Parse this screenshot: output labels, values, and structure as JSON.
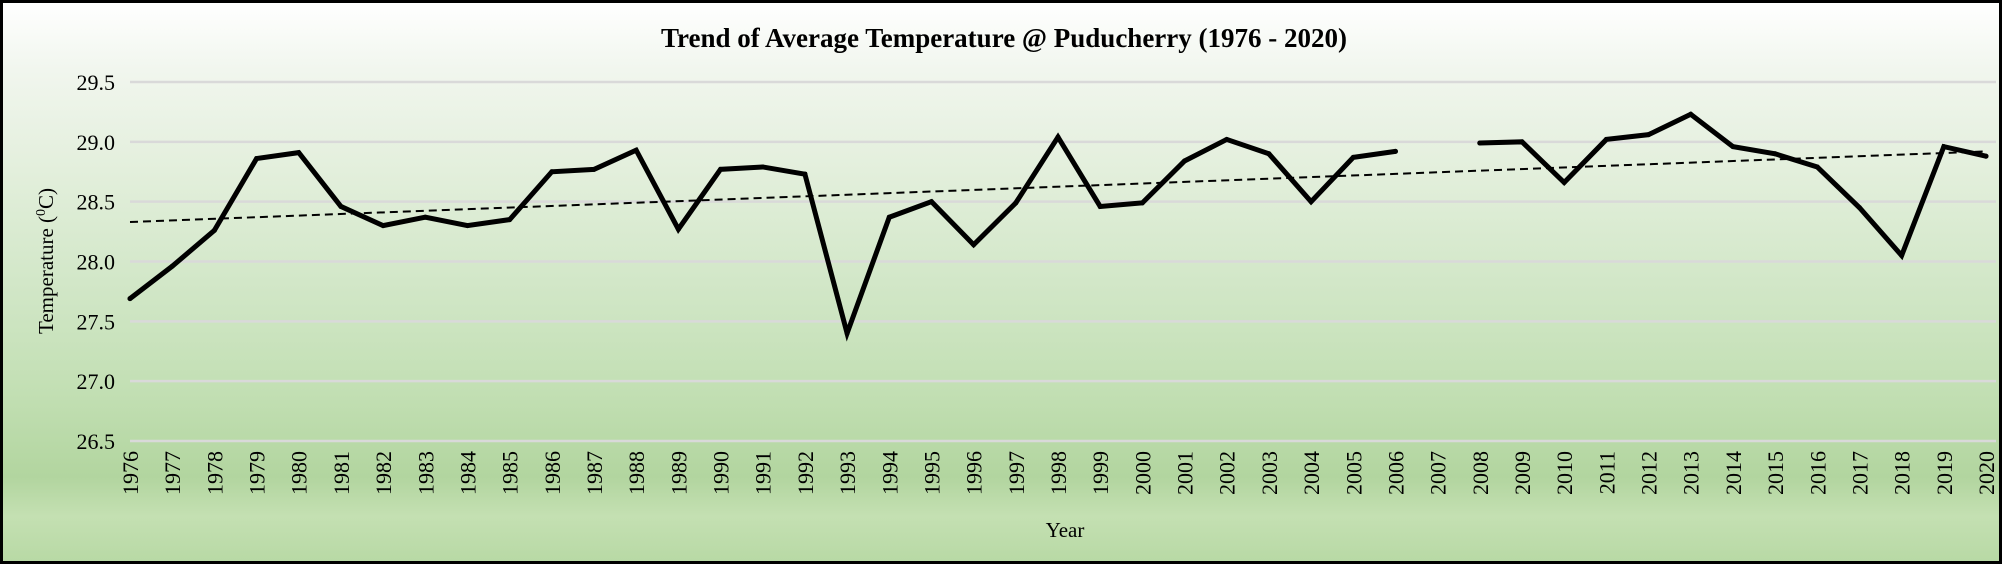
{
  "chart_data": {
    "type": "line",
    "title": "Trend of Average Temperature @ Puducherry (1976 - 2020)",
    "xlabel": "Year",
    "ylabel": "Temperature (⁰C)",
    "ylabel_parts": {
      "prefix": "Temperature (",
      "superscript": "0",
      "suffix": "C)"
    },
    "ylim": [
      26.5,
      29.5
    ],
    "yticks": [
      26.5,
      27.0,
      27.5,
      28.0,
      28.5,
      29.0,
      29.5
    ],
    "ytick_labels": [
      "26.5",
      "27.0",
      "27.5",
      "28.0",
      "28.5",
      "29.0",
      "29.5"
    ],
    "grid": true,
    "legend": "none",
    "categories": [
      "1976",
      "1977",
      "1978",
      "1979",
      "1980",
      "1981",
      "1982",
      "1983",
      "1984",
      "1985",
      "1986",
      "1987",
      "1988",
      "1989",
      "1990",
      "1991",
      "1992",
      "1993",
      "1994",
      "1995",
      "1996",
      "1997",
      "1998",
      "1999",
      "2000",
      "2001",
      "2002",
      "2003",
      "2004",
      "2005",
      "2006",
      "2007",
      "2008",
      "2009",
      "2010",
      "2011",
      "2012",
      "2013",
      "2014",
      "2015",
      "2016",
      "2017",
      "2018",
      "2019",
      "2020"
    ],
    "series": [
      {
        "name": "Average Temperature",
        "style": "solid",
        "color": "#000000",
        "values": [
          27.69,
          27.96,
          28.26,
          28.86,
          28.91,
          28.46,
          28.3,
          28.37,
          28.3,
          28.35,
          28.75,
          28.77,
          28.93,
          28.27,
          28.77,
          28.79,
          28.73,
          27.4,
          28.37,
          28.5,
          28.14,
          28.49,
          29.04,
          28.46,
          28.49,
          28.84,
          29.02,
          28.9,
          28.5,
          28.87,
          28.92,
          null,
          28.99,
          29.0,
          28.66,
          29.02,
          29.06,
          29.23,
          28.96,
          28.9,
          28.79,
          28.45,
          28.05,
          28.96,
          28.88
        ]
      },
      {
        "name": "Linear trend",
        "style": "dashed",
        "color": "#000000",
        "type": "linear-trendline",
        "start": {
          "x": "1976",
          "y": 28.33
        },
        "end": {
          "x": "2020",
          "y": 28.92
        }
      }
    ]
  },
  "colors": {
    "line": "#000000",
    "gridline": "#d9d9d9",
    "background_top": "#ffffff",
    "background_bottom": "#b2d59f"
  }
}
